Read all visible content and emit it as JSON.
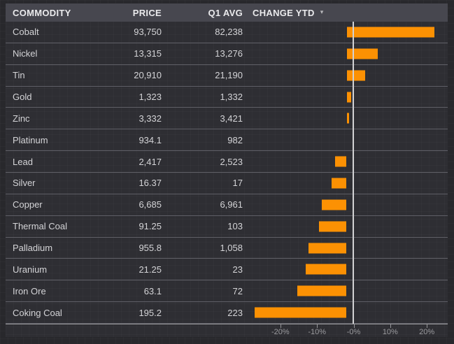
{
  "table": {
    "columns": [
      "COMMODITY",
      "PRICE",
      "Q1 AVG",
      "CHANGE YTD"
    ],
    "sort_caret": "▾",
    "rows": [
      {
        "commodity": "Cobalt",
        "price": "93,750",
        "q1_avg": "82,238",
        "change_ytd_pct": 24.0
      },
      {
        "commodity": "Nickel",
        "price": "13,315",
        "q1_avg": "13,276",
        "change_ytd_pct": 8.5
      },
      {
        "commodity": "Tin",
        "price": "20,910",
        "q1_avg": "21,190",
        "change_ytd_pct": 5.1
      },
      {
        "commodity": "Gold",
        "price": "1,323",
        "q1_avg": "1,332",
        "change_ytd_pct": 1.3
      },
      {
        "commodity": "Zinc",
        "price": "3,332",
        "q1_avg": "3,421",
        "change_ytd_pct": 0.7
      },
      {
        "commodity": "Platinum",
        "price": "934.1",
        "q1_avg": "982",
        "change_ytd_pct": 0.0
      },
      {
        "commodity": "Lead",
        "price": "2,417",
        "q1_avg": "2,523",
        "change_ytd_pct": -3.1
      },
      {
        "commodity": "Silver",
        "price": "16.37",
        "q1_avg": "17",
        "change_ytd_pct": -4.1
      },
      {
        "commodity": "Copper",
        "price": "6,685",
        "q1_avg": "6,961",
        "change_ytd_pct": -6.8
      },
      {
        "commodity": "Thermal Coal",
        "price": "91.25",
        "q1_avg": "103",
        "change_ytd_pct": -7.6
      },
      {
        "commodity": "Palladium",
        "price": "955.8",
        "q1_avg": "1,058",
        "change_ytd_pct": -10.4
      },
      {
        "commodity": "Uranium",
        "price": "21.25",
        "q1_avg": "23",
        "change_ytd_pct": -11.1
      },
      {
        "commodity": "Iron Ore",
        "price": "63.1",
        "q1_avg": "72",
        "change_ytd_pct": -13.4
      },
      {
        "commodity": "Coking Coal",
        "price": "195.2",
        "q1_avg": "223",
        "change_ytd_pct": -25.2
      }
    ]
  },
  "chart_data": {
    "type": "bar",
    "orientation": "horizontal",
    "title": "CHANGE YTD",
    "categories": [
      "Cobalt",
      "Nickel",
      "Tin",
      "Gold",
      "Zinc",
      "Platinum",
      "Lead",
      "Silver",
      "Copper",
      "Thermal Coal",
      "Palladium",
      "Uranium",
      "Iron Ore",
      "Coking Coal"
    ],
    "values": [
      24.0,
      8.5,
      5.1,
      1.3,
      0.7,
      0.0,
      -3.1,
      -4.1,
      -6.8,
      -7.6,
      -10.4,
      -11.1,
      -13.4,
      -25.2
    ],
    "unit": "%",
    "axis": {
      "min": -25.7,
      "max": 25.7,
      "tick_values": [
        -20,
        -10,
        0,
        10,
        20
      ],
      "tick_labels": [
        "-20%",
        "-10%",
        "-0%",
        "10%",
        "20%"
      ]
    },
    "bar_color": "#fc9103",
    "zero_line": true,
    "grid": false,
    "legend": "none"
  },
  "colors": {
    "background": "#28282c",
    "panel_background": "#2e2e33",
    "header_background": "#47474f",
    "bar": "#fc9103",
    "header_text": "#eaeaec",
    "body_text": "#d4d4d7",
    "axis_text": "#9b9b9f",
    "separator": "#5f5f66",
    "zero_line": "#d2d2d4"
  }
}
